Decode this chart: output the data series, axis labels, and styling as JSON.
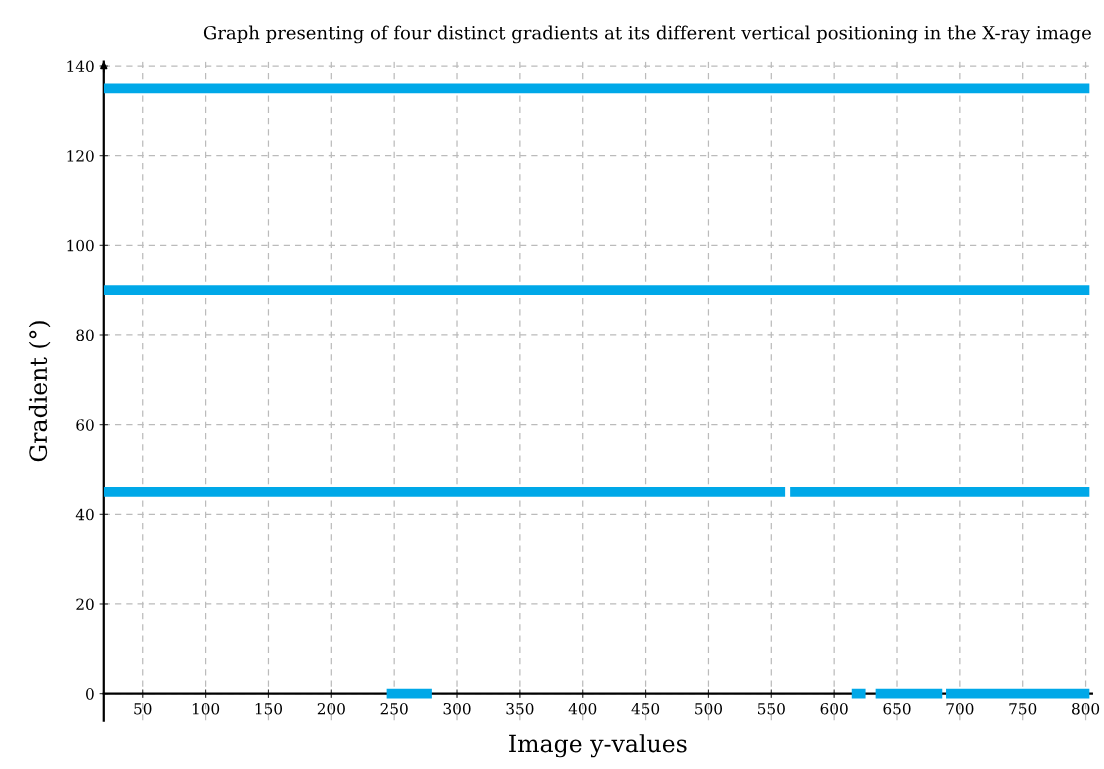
{
  "chart_data": {
    "type": "line",
    "title": "Graph presenting of four distinct gradients at its different vertical positioning in the X-ray image",
    "xlabel": "Image y-values",
    "ylabel": "Gradient (°)",
    "series": [
      {
        "color": "#00a8e8",
        "x": [
          19,
          803
        ],
        "values": [
          135,
          135
        ]
      },
      {
        "color": "#00a8e8",
        "x": [
          19,
          803
        ],
        "values": [
          90,
          90
        ]
      },
      {
        "color": "#00a8e8",
        "x": [
          19,
          561,
          563,
          565,
          803
        ],
        "values": [
          45,
          45,
          null,
          45,
          45
        ]
      },
      {
        "color": "#00a8e8",
        "x": [
          244,
          280,
          447,
          614,
          625,
          629,
          633,
          686,
          687.5,
          689,
          803
        ],
        "values": [
          0,
          0,
          null,
          0,
          0,
          null,
          0,
          0,
          null,
          0,
          0
        ]
      }
    ],
    "xlim": [
      19,
      805
    ],
    "ylim": [
      -6,
      141
    ],
    "xticks": [
      50,
      100,
      150,
      200,
      250,
      300,
      350,
      400,
      450,
      500,
      550,
      600,
      650,
      700,
      750,
      800
    ],
    "yticks": [
      0,
      20,
      40,
      60,
      80,
      100,
      120,
      140
    ],
    "grid": true,
    "marker": "none",
    "line_style": "solid"
  }
}
